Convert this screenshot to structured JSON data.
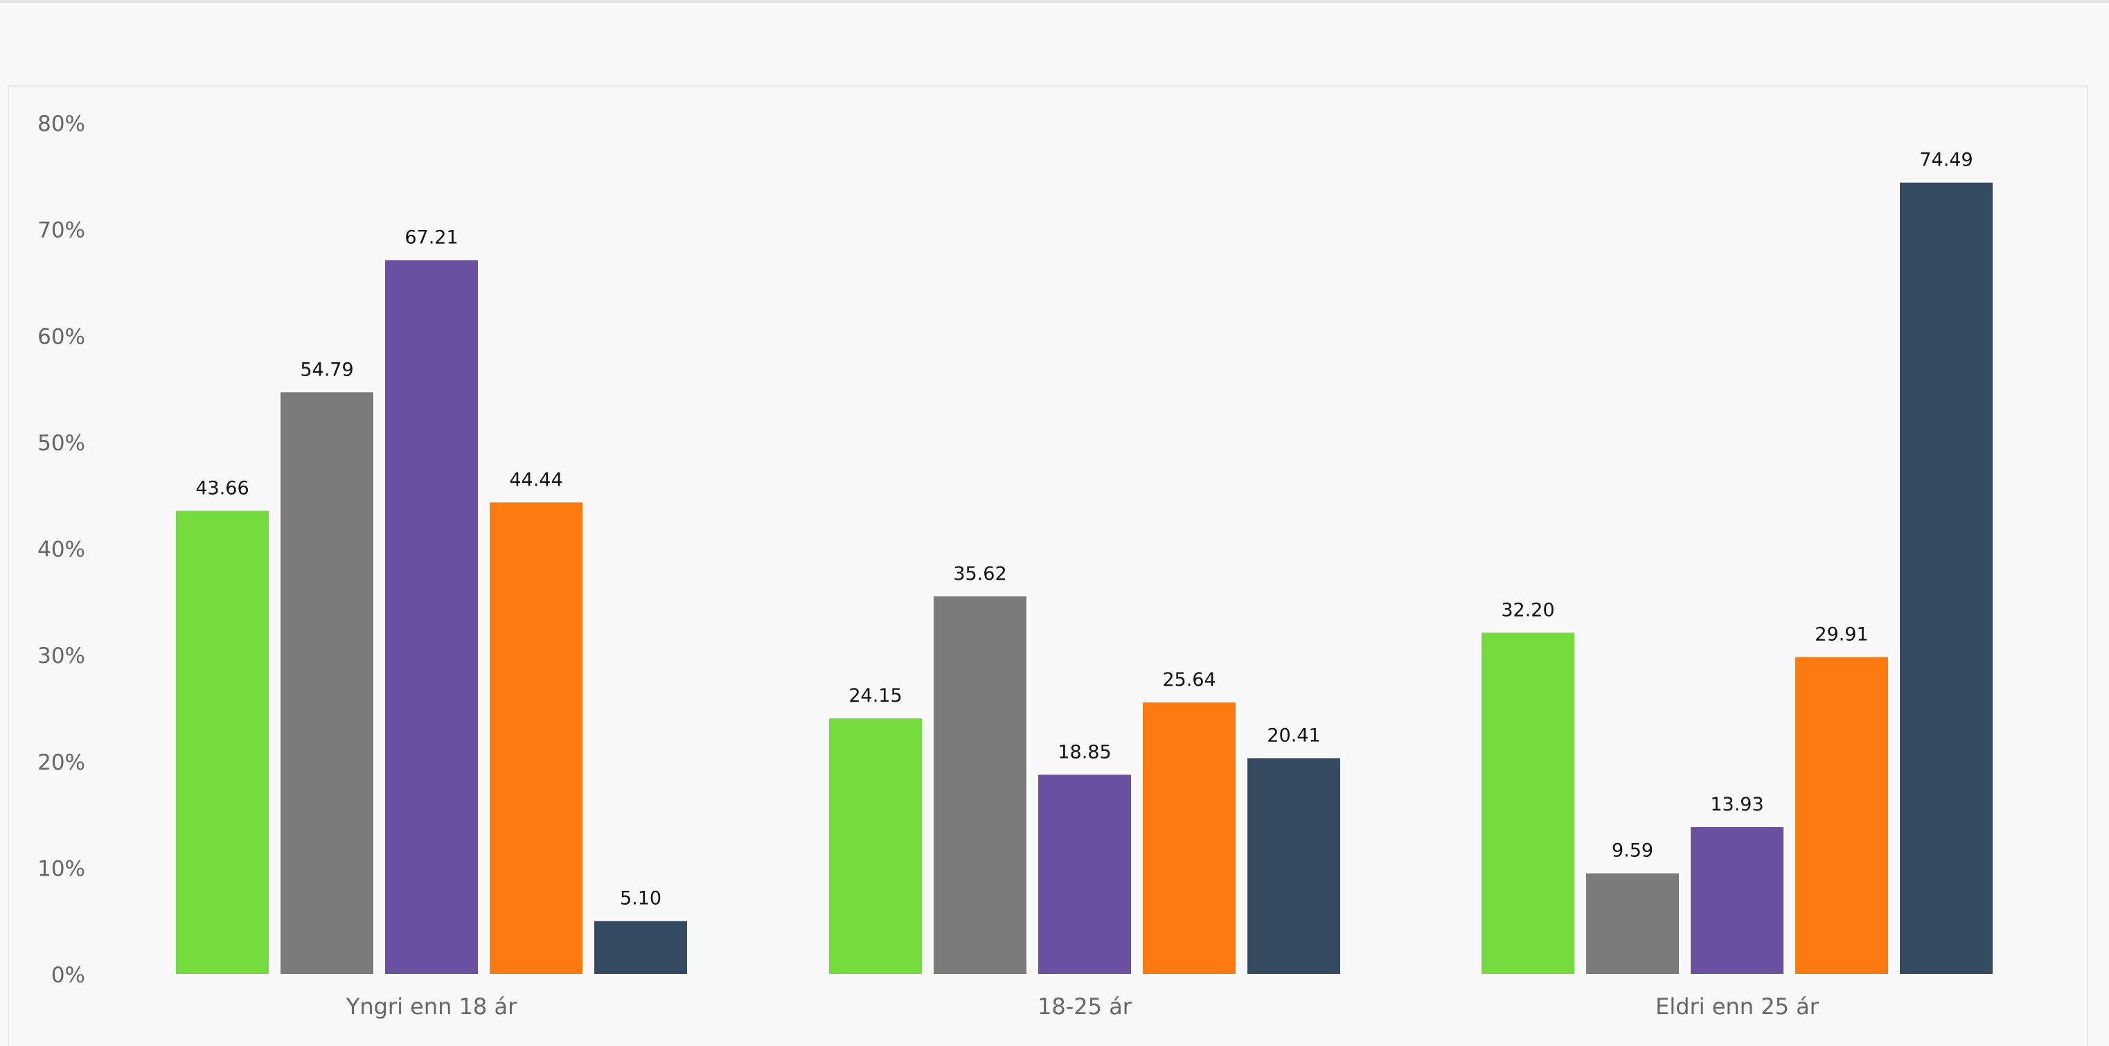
{
  "chart_data": {
    "type": "bar",
    "categories": [
      "Yngri enn 18 ár",
      "18-25 ár",
      "Eldri enn 25 ár"
    ],
    "series": [
      {
        "color": "#73dc3c",
        "values": [
          43.66,
          24.15,
          32.2
        ]
      },
      {
        "color": "#7b7b7b",
        "values": [
          54.79,
          35.62,
          9.59
        ]
      },
      {
        "color": "#6a50a0",
        "values": [
          67.21,
          18.85,
          13.93
        ]
      },
      {
        "color": "#fc7a10",
        "values": [
          44.44,
          25.64,
          29.91
        ]
      },
      {
        "color": "#344a61",
        "values": [
          5.1,
          20.41,
          74.49
        ]
      }
    ],
    "data_labels": [
      [
        "43.66",
        "24.15",
        "32.20"
      ],
      [
        "54.79",
        "35.62",
        "9.59"
      ],
      [
        "67.21",
        "18.85",
        "13.93"
      ],
      [
        "44.44",
        "25.64",
        "29.91"
      ],
      [
        "5.10",
        "20.41",
        "74.49"
      ]
    ],
    "y_ticks": [
      "0%",
      "10%",
      "20%",
      "30%",
      "40%",
      "50%",
      "60%",
      "70%",
      "80%"
    ],
    "ylim": [
      0,
      80
    ],
    "xlabel": "",
    "ylabel": "",
    "grid": false,
    "legend": "none"
  }
}
